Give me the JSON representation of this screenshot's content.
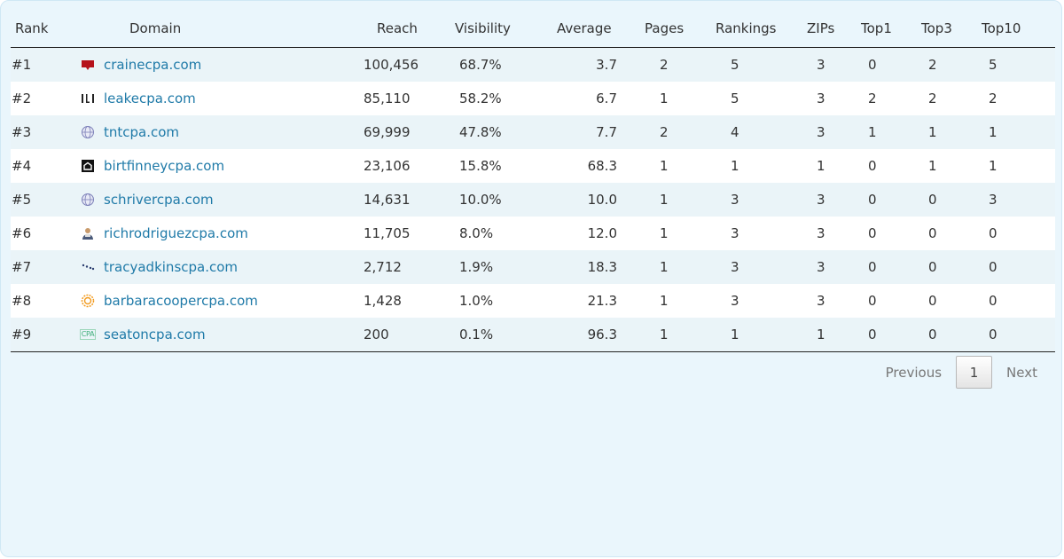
{
  "columns": {
    "rank": "Rank",
    "domain": "Domain",
    "reach": "Reach",
    "visibility": "Visibility",
    "average": "Average",
    "pages": "Pages",
    "rankings": "Rankings",
    "zips": "ZIPs",
    "top1": "Top1",
    "top3": "Top3",
    "top10": "Top10"
  },
  "rows": [
    {
      "rank": "#1",
      "domain": "crainecpa.com",
      "icon": "red-pin-favicon",
      "reach": "100,456",
      "visibility": "68.7%",
      "average": "3.7",
      "pages": "2",
      "rankings": "5",
      "zips": "3",
      "top1": "0",
      "top3": "2",
      "top10": "5"
    },
    {
      "rank": "#2",
      "domain": "leakecpa.com",
      "icon": "bracket-letter-favicon",
      "reach": "85,110",
      "visibility": "58.2%",
      "average": "6.7",
      "pages": "1",
      "rankings": "5",
      "zips": "3",
      "top1": "2",
      "top3": "2",
      "top10": "2"
    },
    {
      "rank": "#3",
      "domain": "tntcpa.com",
      "icon": "globe-favicon",
      "reach": "69,999",
      "visibility": "47.8%",
      "average": "7.7",
      "pages": "2",
      "rankings": "4",
      "zips": "3",
      "top1": "1",
      "top3": "1",
      "top10": "1"
    },
    {
      "rank": "#4",
      "domain": "birtfinneycpa.com",
      "icon": "house-favicon",
      "reach": "23,106",
      "visibility": "15.8%",
      "average": "68.3",
      "pages": "1",
      "rankings": "1",
      "zips": "1",
      "top1": "0",
      "top3": "1",
      "top10": "1"
    },
    {
      "rank": "#5",
      "domain": "schrivercpa.com",
      "icon": "globe-favicon",
      "reach": "14,631",
      "visibility": "10.0%",
      "average": "10.0",
      "pages": "1",
      "rankings": "3",
      "zips": "3",
      "top1": "0",
      "top3": "0",
      "top10": "3"
    },
    {
      "rank": "#6",
      "domain": "richrodriguezcpa.com",
      "icon": "person-favicon",
      "reach": "11,705",
      "visibility": "8.0%",
      "average": "12.0",
      "pages": "1",
      "rankings": "3",
      "zips": "3",
      "top1": "0",
      "top3": "0",
      "top10": "0"
    },
    {
      "rank": "#7",
      "domain": "tracyadkinscpa.com",
      "icon": "dots-favicon",
      "reach": "2,712",
      "visibility": "1.9%",
      "average": "18.3",
      "pages": "1",
      "rankings": "3",
      "zips": "3",
      "top1": "0",
      "top3": "0",
      "top10": "0"
    },
    {
      "rank": "#8",
      "domain": "barbaracoopercpa.com",
      "icon": "sun-favicon",
      "reach": "1,428",
      "visibility": "1.0%",
      "average": "21.3",
      "pages": "1",
      "rankings": "3",
      "zips": "3",
      "top1": "0",
      "top3": "0",
      "top10": "0"
    },
    {
      "rank": "#9",
      "domain": "seatoncpa.com",
      "icon": "cpa-text-favicon",
      "reach": "200",
      "visibility": "0.1%",
      "average": "96.3",
      "pages": "1",
      "rankings": "1",
      "zips": "1",
      "top1": "0",
      "top3": "0",
      "top10": "0"
    }
  ],
  "pagination": {
    "previous": "Previous",
    "current_page": "1",
    "next": "Next"
  },
  "colors": {
    "link": "#1f7aa8",
    "panel_bg": "#eaf6fc",
    "row_stripe": "#eaf4f8"
  }
}
